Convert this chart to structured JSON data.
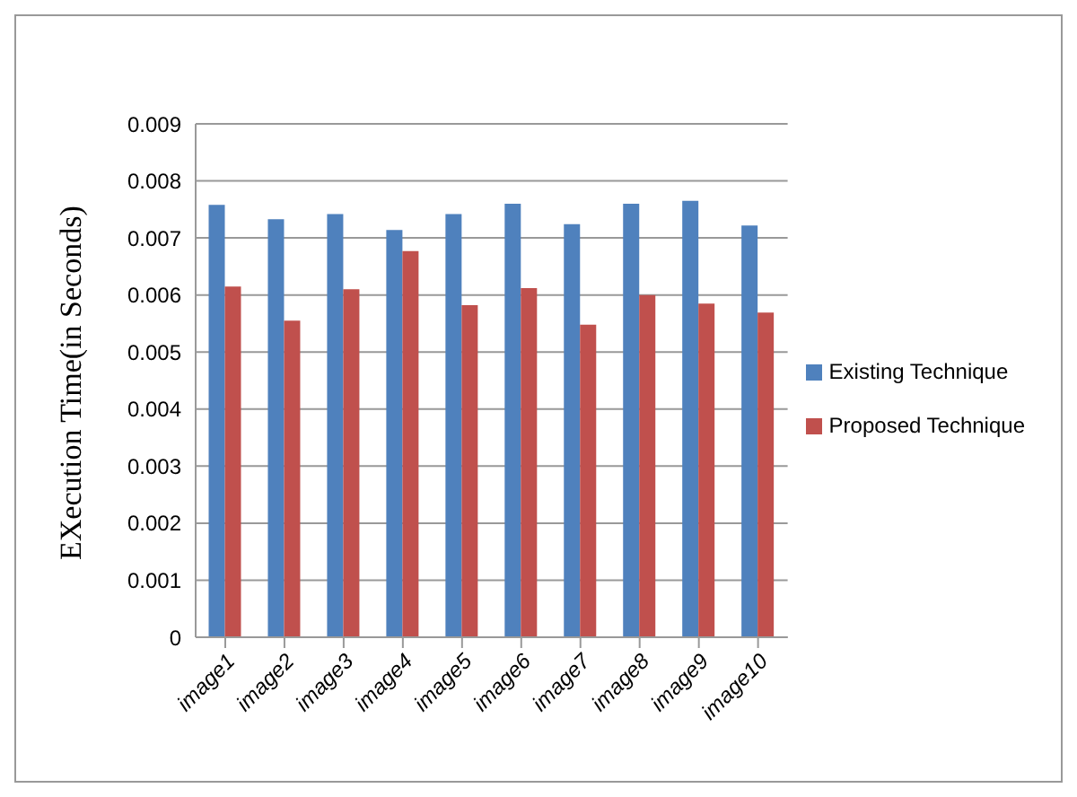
{
  "chart_data": {
    "type": "bar",
    "ylabel": "EXecution Time(in Seconds)",
    "categories": [
      "image1",
      "image2",
      "image3",
      "image4",
      "image5",
      "image6",
      "image7",
      "image8",
      "image9",
      "image10"
    ],
    "series": [
      {
        "name": "Existing Technique",
        "color": "#4f81bd",
        "values": [
          0.00758,
          0.00733,
          0.00742,
          0.00714,
          0.00742,
          0.0076,
          0.00724,
          0.0076,
          0.00765,
          0.00722
        ]
      },
      {
        "name": "Proposed Technique",
        "color": "#c0504d",
        "values": [
          0.00615,
          0.00555,
          0.0061,
          0.00677,
          0.00582,
          0.00612,
          0.00548,
          0.006,
          0.00585,
          0.00569
        ]
      }
    ],
    "ylim": [
      0,
      0.009
    ],
    "yticks": [
      0,
      0.001,
      0.002,
      0.003,
      0.004,
      0.005,
      0.006,
      0.007,
      0.008,
      0.009
    ],
    "grid": "y",
    "legend": "right"
  }
}
